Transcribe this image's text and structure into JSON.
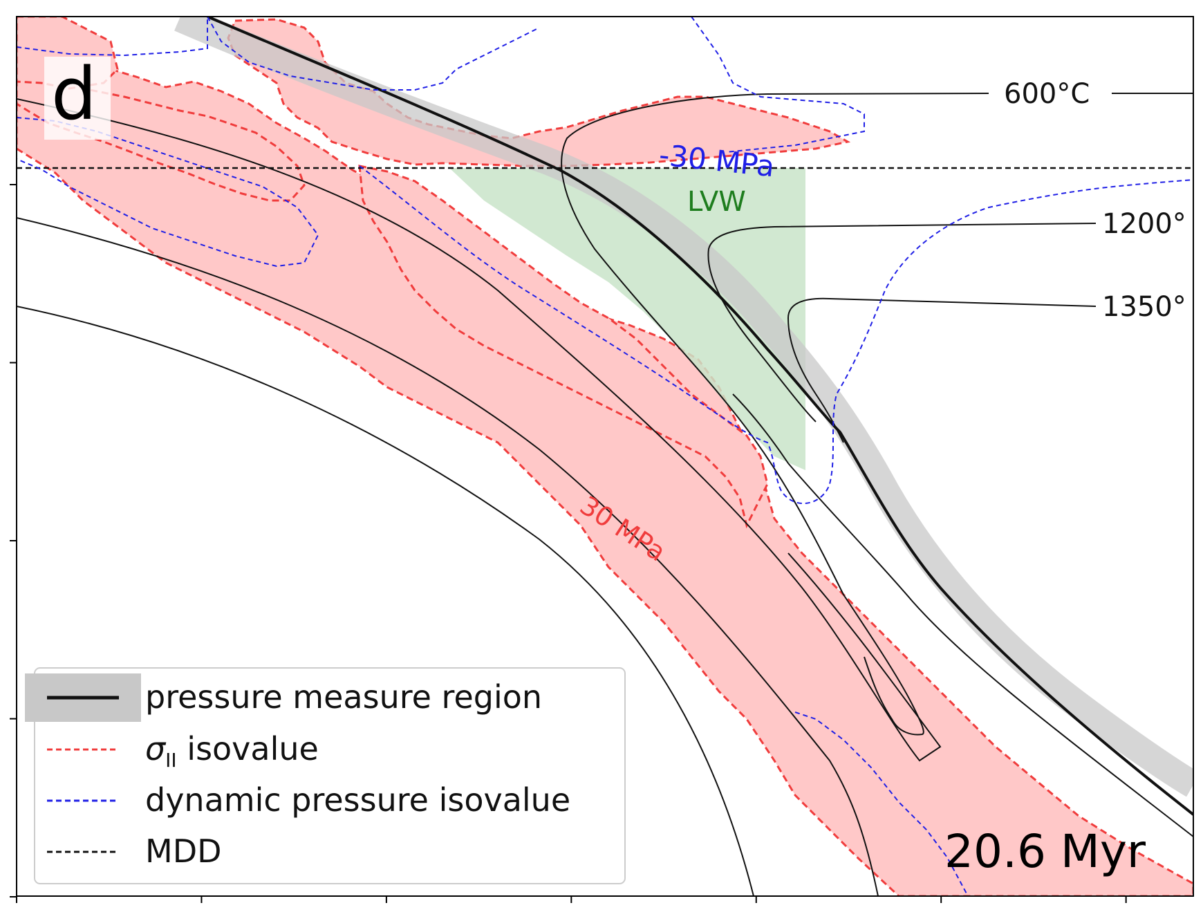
{
  "panel_label": "d",
  "time_label": "20.6 Myr",
  "colors": {
    "stress_fill": "#ffc8c8",
    "stress_line": "#f03c3c",
    "pressure_line": "#1f1fe6",
    "lvw_fill": "#c9e4c9",
    "lvw_text": "#1e7d1e",
    "region_band": "#c8c8c8",
    "isotherm": "#111111",
    "mdd": "#111111"
  },
  "contour_labels": {
    "pressure_neg": "-30 MPa",
    "stress": "30 MPa",
    "lvw": "LVW"
  },
  "isotherm_labels": [
    "600°C",
    "1200°",
    "1350°"
  ],
  "legend": {
    "placement": "lower-left",
    "items": [
      {
        "label": "pressure measure region",
        "style": "thick-black-line-on-grey-band"
      },
      {
        "label_symbol": "σ",
        "label_sub": "II",
        "label_rest": " isovalue",
        "style": "red-dashed"
      },
      {
        "label": "dynamic pressure isovalue",
        "style": "blue-dashed"
      },
      {
        "label": "MDD",
        "style": "black-dashed"
      }
    ]
  },
  "chart_data": {
    "type": "contour",
    "title": "",
    "xlabel": "",
    "ylabel": "",
    "tick_labels_shown": false,
    "x_tick_count": 7,
    "y_tick_count": 5,
    "grid": false,
    "series": [
      {
        "name": "pressure measure region",
        "kind": "slab-surface-band"
      },
      {
        "name": "σII isovalue",
        "kind": "dashed-contour",
        "level": "30 MPa"
      },
      {
        "name": "dynamic pressure isovalue",
        "kind": "dashed-contour",
        "level": "-30 MPa"
      },
      {
        "name": "MDD",
        "kind": "horizontal-dashed-line"
      }
    ],
    "isotherms": [
      "600°C",
      "1200°",
      "1350°"
    ]
  }
}
